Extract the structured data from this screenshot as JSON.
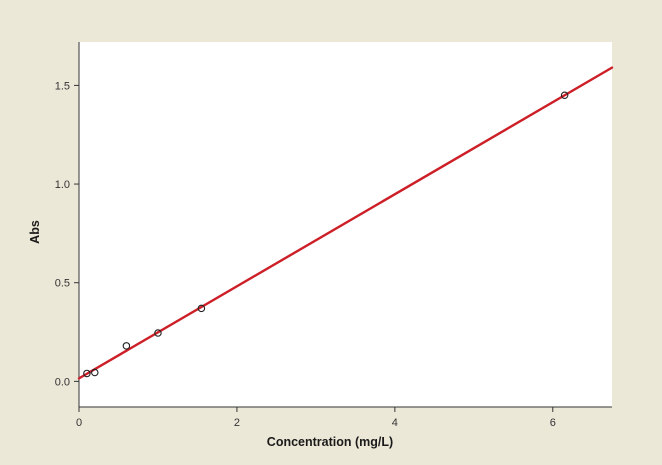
{
  "chart_data": {
    "type": "scatter",
    "title": "",
    "xlabel": "Concentration (mg/L)",
    "ylabel": "Abs",
    "xlim": [
      0,
      6.75
    ],
    "ylim": [
      -0.13,
      1.72
    ],
    "x_ticks": [
      0,
      2,
      4,
      6
    ],
    "x_tick_labels": [
      "0",
      "2",
      "4",
      "6"
    ],
    "y_ticks": [
      0.0,
      0.5,
      1.0,
      1.5
    ],
    "y_tick_labels": [
      "0.0",
      "0.5",
      "1.0",
      "1.5"
    ],
    "grid": false,
    "legend": "none",
    "series": [
      {
        "kind": "points",
        "marker": "open-circle",
        "x": [
          0.1,
          0.2,
          0.6,
          1.0,
          1.55,
          6.15
        ],
        "y": [
          0.04,
          0.045,
          0.18,
          0.245,
          0.37,
          1.45
        ]
      },
      {
        "kind": "fit-line",
        "color": "#cc1f27",
        "x": [
          0,
          6.75
        ],
        "y": [
          0.015,
          1.59
        ]
      }
    ]
  },
  "colors": {
    "background": "#ece8d8",
    "plot_area": "#ffffff",
    "fit_line": "#cc1f27",
    "marker": "#222222",
    "axis": "#333333"
  }
}
